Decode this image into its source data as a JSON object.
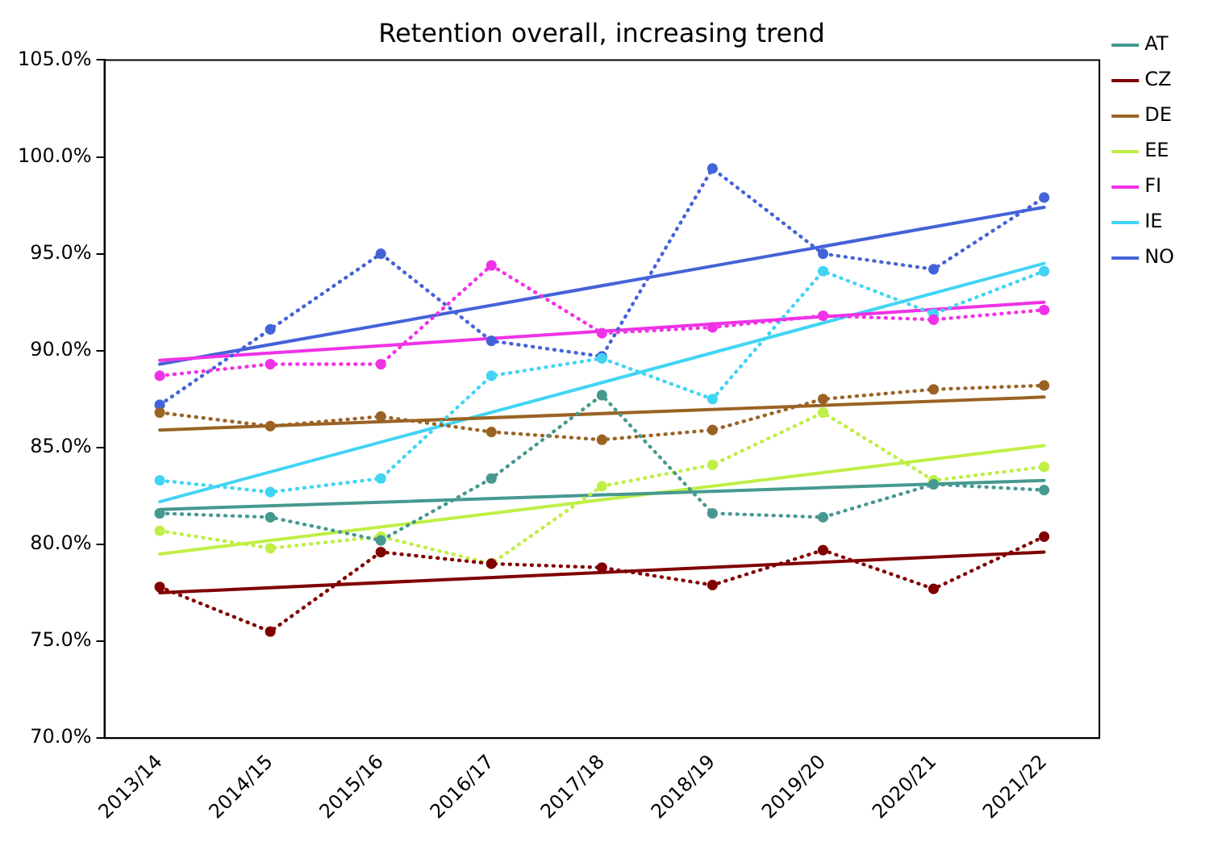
{
  "chart_data": {
    "type": "line",
    "title": "Retention overall, increasing trend",
    "categories": [
      "2013/14",
      "2014/15",
      "2015/16",
      "2016/17",
      "2017/18",
      "2018/19",
      "2019/20",
      "2020/21",
      "2021/22"
    ],
    "ylim": [
      70,
      105
    ],
    "yticks": [
      {
        "value": 70,
        "label": "70.0%"
      },
      {
        "value": 75,
        "label": "75.0%"
      },
      {
        "value": 80,
        "label": "80.0%"
      },
      {
        "value": 85,
        "label": "85.0%"
      },
      {
        "value": 90,
        "label": "90.0%"
      },
      {
        "value": 95,
        "label": "95.0%"
      },
      {
        "value": 100,
        "label": "100.0%"
      },
      {
        "value": 105,
        "label": "105.0%"
      }
    ],
    "grid": false,
    "legend": "right",
    "series": [
      {
        "color": "#469990",
        "line_style": "dotted",
        "marker": "circle",
        "values": [
          81.6,
          81.4,
          80.2,
          83.4,
          87.7,
          81.6,
          81.4,
          83.1,
          82.8
        ]
      },
      {
        "color": "#800000",
        "line_style": "dotted",
        "marker": "circle",
        "values": [
          77.8,
          75.5,
          79.6,
          79.0,
          78.8,
          77.9,
          79.7,
          77.7,
          80.4
        ]
      },
      {
        "color": "#9a6324",
        "line_style": "dotted",
        "marker": "circle",
        "values": [
          86.8,
          86.1,
          86.6,
          85.8,
          85.4,
          85.9,
          87.5,
          88.0,
          88.2
        ]
      },
      {
        "color": "#bfef45",
        "line_style": "dotted",
        "marker": "circle",
        "values": [
          80.7,
          79.8,
          80.4,
          79.0,
          83.0,
          84.1,
          86.8,
          83.3,
          84.0
        ]
      },
      {
        "color": "#f032e6",
        "line_style": "dotted",
        "marker": "circle",
        "values": [
          88.7,
          89.3,
          89.3,
          94.4,
          90.9,
          91.2,
          91.8,
          91.6,
          92.1
        ]
      },
      {
        "color": "#42d4f4",
        "line_style": "dotted",
        "marker": "circle",
        "values": [
          83.3,
          82.7,
          83.4,
          88.7,
          89.6,
          87.5,
          94.1,
          91.9,
          94.1
        ]
      },
      {
        "color": "#4363d8",
        "line_style": "dotted",
        "marker": "circle",
        "values": [
          87.2,
          91.1,
          95.0,
          90.5,
          89.7,
          99.4,
          95.0,
          94.2,
          97.9
        ]
      },
      {
        "name": "AT",
        "color": "#469990",
        "line_style": "solid",
        "marker": "none",
        "x": [
          "2013/14",
          "2021/22"
        ],
        "values": [
          81.8,
          83.3
        ]
      },
      {
        "name": "CZ",
        "color": "#800000",
        "line_style": "solid",
        "marker": "none",
        "x": [
          "2013/14",
          "2021/22"
        ],
        "values": [
          77.5,
          79.6
        ]
      },
      {
        "name": "DE",
        "color": "#9a6324",
        "line_style": "solid",
        "marker": "none",
        "x": [
          "2013/14",
          "2021/22"
        ],
        "values": [
          85.9,
          87.6
        ]
      },
      {
        "name": "EE",
        "color": "#bfef45",
        "line_style": "solid",
        "marker": "none",
        "x": [
          "2013/14",
          "2021/22"
        ],
        "values": [
          79.5,
          85.1
        ]
      },
      {
        "name": "FI",
        "color": "#f032e6",
        "line_style": "solid",
        "marker": "none",
        "x": [
          "2013/14",
          "2021/22"
        ],
        "values": [
          89.5,
          92.5
        ]
      },
      {
        "name": "IE",
        "color": "#42d4f4",
        "line_style": "solid",
        "marker": "none",
        "x": [
          "2013/14",
          "2021/22"
        ],
        "values": [
          82.2,
          94.5
        ]
      },
      {
        "name": "NO",
        "color": "#4363d8",
        "line_style": "solid",
        "marker": "none",
        "x": [
          "2013/14",
          "2021/22"
        ],
        "values": [
          89.3,
          97.4
        ]
      }
    ]
  }
}
